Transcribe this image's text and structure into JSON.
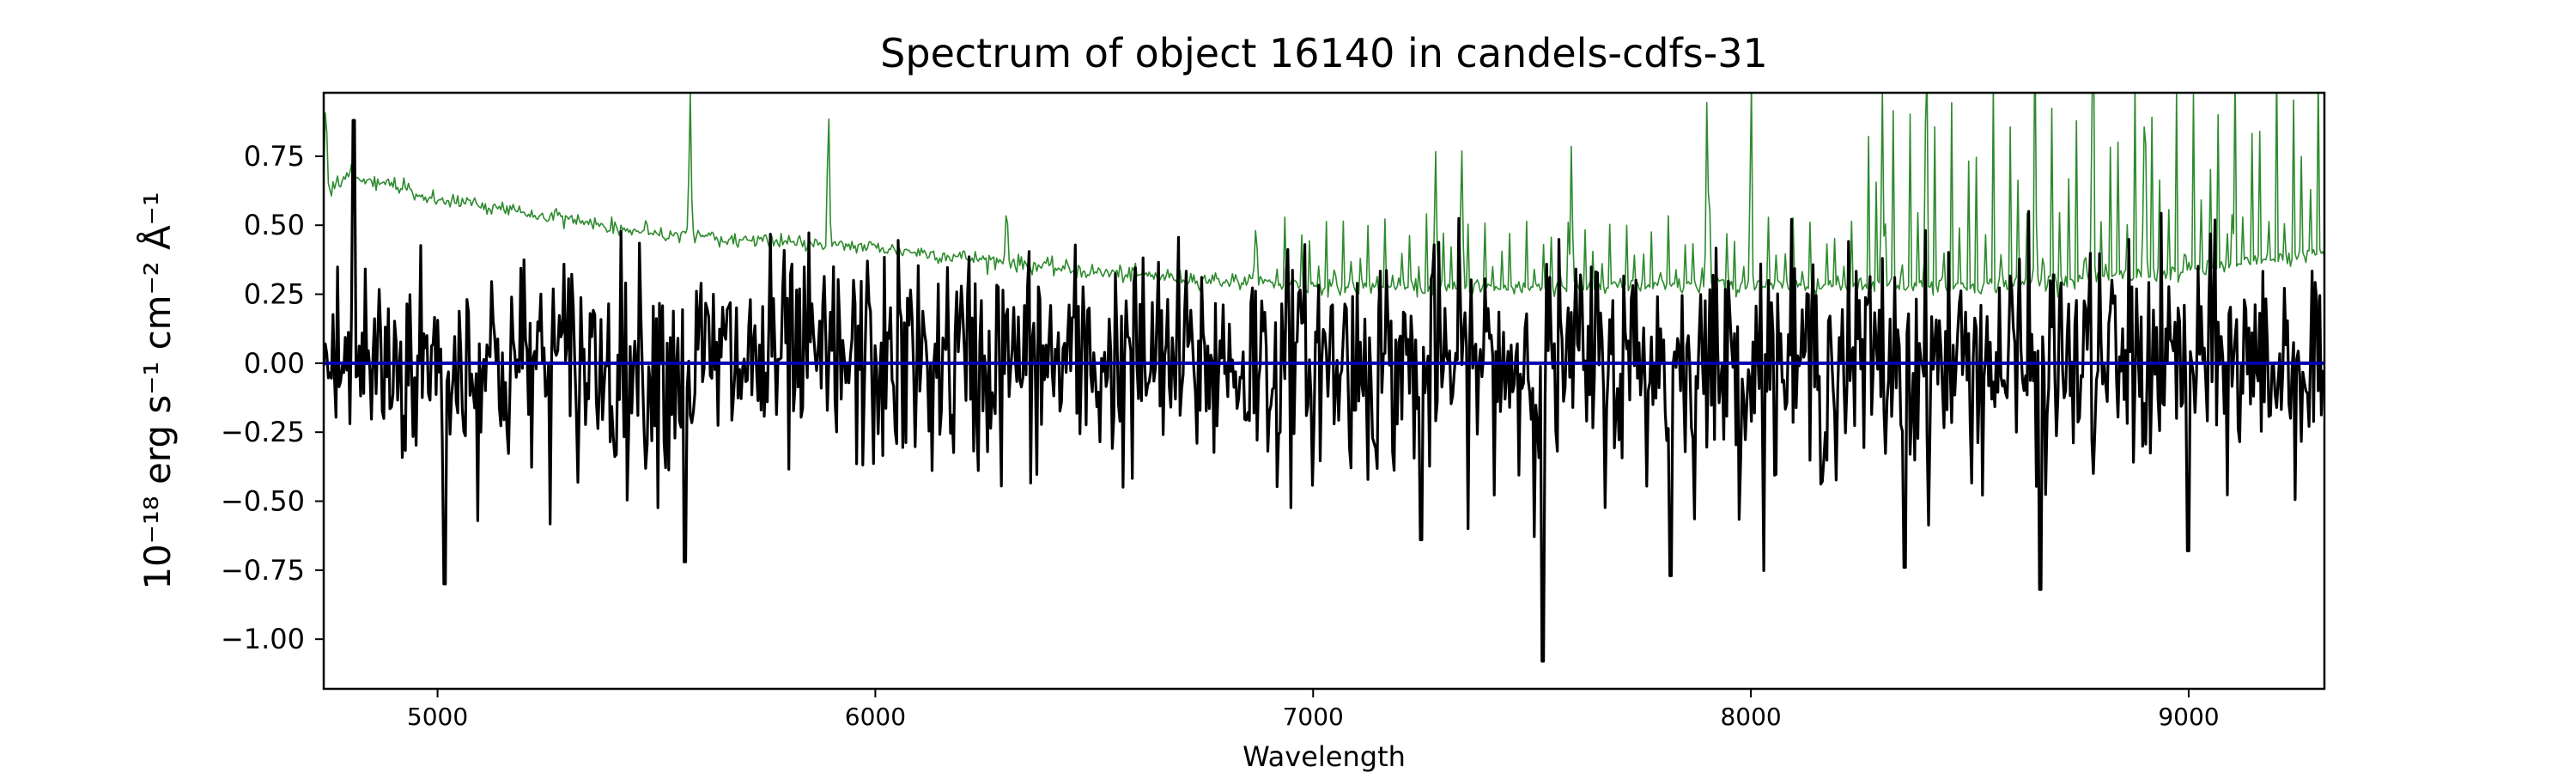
{
  "chart_data": {
    "type": "line",
    "title": "Spectrum of object 16140 in candels-cdfs-31",
    "xlabel": "Wavelength",
    "ylabel": "10⁻¹⁸ erg s⁻¹ cm⁻² Å⁻¹",
    "xlim": [
      4740,
      9310
    ],
    "ylim": [
      -1.18,
      0.98
    ],
    "xticks": [
      5000,
      6000,
      7000,
      8000,
      9000
    ],
    "yticks": [
      -1.0,
      -0.75,
      -0.5,
      -0.25,
      0.0,
      0.25,
      0.5,
      0.75
    ],
    "xtick_labels": [
      "5000",
      "6000",
      "7000",
      "8000",
      "9000"
    ],
    "ytick_labels": [
      "−1.00",
      "−0.75",
      "−0.50",
      "−0.25",
      "0.00",
      "0.25",
      "0.50",
      "0.75"
    ],
    "grid": false,
    "colors": {
      "flux": "#000000",
      "error": "#2e8b2e",
      "zero": "#0000b0"
    },
    "series": [
      {
        "key": "flux",
        "x_start": 4740,
        "x_end": 9310,
        "n_points": 1300,
        "noise_amplitude": 0.2,
        "features": [
          {
            "x": 4810,
            "y": 0.88
          },
          {
            "x": 5015,
            "y": -0.8
          },
          {
            "x": 5565,
            "y": -0.72
          },
          {
            "x": 7245,
            "y": -0.64
          },
          {
            "x": 7525,
            "y": -1.08
          },
          {
            "x": 7815,
            "y": -0.77
          },
          {
            "x": 8350,
            "y": -0.74
          },
          {
            "x": 8660,
            "y": -0.82
          },
          {
            "x": 9000,
            "y": -0.68
          }
        ]
      },
      {
        "key": "error",
        "x_start": 4740,
        "x_end": 9310,
        "n_points": 1300,
        "continuum": [
          {
            "x": 4740,
            "y": 0.62
          },
          {
            "x": 4800,
            "y": 0.68
          },
          {
            "x": 5000,
            "y": 0.6
          },
          {
            "x": 5500,
            "y": 0.47
          },
          {
            "x": 6000,
            "y": 0.42
          },
          {
            "x": 6500,
            "y": 0.33
          },
          {
            "x": 7000,
            "y": 0.28
          },
          {
            "x": 7300,
            "y": 0.27
          },
          {
            "x": 8000,
            "y": 0.28
          },
          {
            "x": 8500,
            "y": 0.28
          },
          {
            "x": 9000,
            "y": 0.33
          },
          {
            "x": 9310,
            "y": 0.4
          }
        ],
        "lines": [
          {
            "x": 4745,
            "y": 0.98
          },
          {
            "x": 5577,
            "y": 0.98
          },
          {
            "x": 5893,
            "y": 0.93
          },
          {
            "x": 6300,
            "y": 0.6
          },
          {
            "x": 6870,
            "y": 0.55
          },
          {
            "x": 7280,
            "y": 0.75
          },
          {
            "x": 7340,
            "y": 0.8
          },
          {
            "x": 7590,
            "y": 0.8
          },
          {
            "x": 7900,
            "y": 0.98
          },
          {
            "x": 8000,
            "y": 0.85
          },
          {
            "x": 8300,
            "y": 0.98
          },
          {
            "x": 8400,
            "y": 0.98
          },
          {
            "x": 8650,
            "y": 0.65
          },
          {
            "x": 8780,
            "y": 0.98
          },
          {
            "x": 8900,
            "y": 0.98
          },
          {
            "x": 9100,
            "y": 0.55
          }
        ]
      },
      {
        "key": "zero",
        "x": [
          4740,
          9310
        ],
        "y": [
          0,
          0
        ]
      }
    ]
  }
}
